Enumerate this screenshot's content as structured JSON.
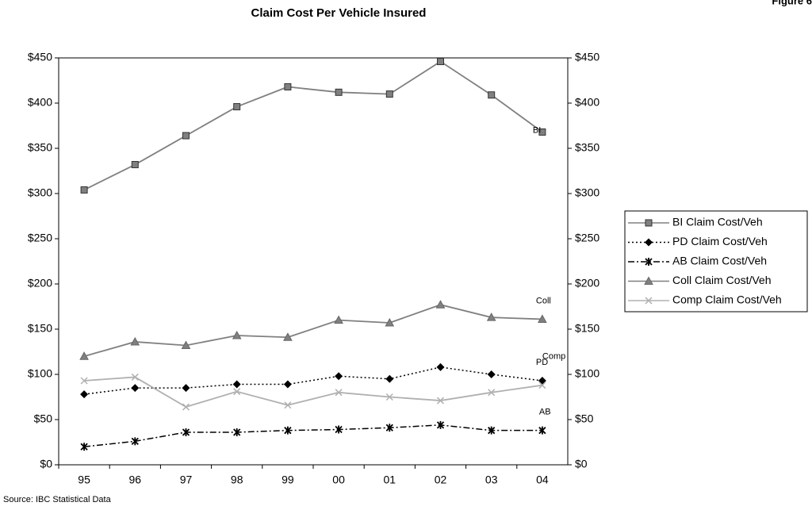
{
  "chart_data": {
    "type": "line",
    "title": "Claim Cost Per Vehicle Insured",
    "figure_label": "Figure 6",
    "source": "Source:  IBC Statistical Data",
    "categories": [
      "95",
      "96",
      "97",
      "98",
      "99",
      "00",
      "01",
      "02",
      "03",
      "04"
    ],
    "ylim": [
      0,
      450
    ],
    "yticks": [
      {
        "value": 0,
        "label": "$0"
      },
      {
        "value": 50,
        "label": "$50"
      },
      {
        "value": 100,
        "label": "$100"
      },
      {
        "value": 150,
        "label": "$150"
      },
      {
        "value": 200,
        "label": "$200"
      },
      {
        "value": 250,
        "label": "$250"
      },
      {
        "value": 300,
        "label": "$300"
      },
      {
        "value": 350,
        "label": "$350"
      },
      {
        "value": 400,
        "label": "$400"
      },
      {
        "value": 450,
        "label": "$450"
      }
    ],
    "y2lim": [
      0,
      450
    ],
    "y2ticks": [
      {
        "value": 0,
        "label": "$0"
      },
      {
        "value": 50,
        "label": "$50"
      },
      {
        "value": 100,
        "label": "$100"
      },
      {
        "value": 150,
        "label": "$150"
      },
      {
        "value": 200,
        "label": "$200"
      },
      {
        "value": 250,
        "label": "$250"
      },
      {
        "value": 300,
        "label": "$300"
      },
      {
        "value": 350,
        "label": "$350"
      },
      {
        "value": 400,
        "label": "$400"
      },
      {
        "value": 450,
        "label": "$450"
      }
    ],
    "grid": false,
    "legend": "right",
    "series": [
      {
        "name": "BI Claim Cost/Veh",
        "label": "BI",
        "color": "#808080",
        "marker": "square",
        "dash": "solid",
        "values": [
          304,
          332,
          364,
          396,
          418,
          412,
          410,
          446,
          409,
          368
        ]
      },
      {
        "name": "PD Claim Cost/Veh",
        "label": "PD",
        "color": "#000000",
        "marker": "diamond",
        "dash": "dotted",
        "values": [
          78,
          85,
          85,
          89,
          89,
          98,
          95,
          108,
          100,
          93
        ]
      },
      {
        "name": "AB Claim Cost/Veh",
        "label": "AB",
        "color": "#000000",
        "marker": "asterisk",
        "dash": "dashdot",
        "values": [
          20,
          26,
          36,
          36,
          38,
          39,
          41,
          44,
          38,
          38
        ]
      },
      {
        "name": "Coll Claim Cost/Veh",
        "label": "Coll",
        "color": "#808080",
        "marker": "triangle",
        "dash": "solid",
        "values": [
          120,
          136,
          132,
          143,
          141,
          160,
          157,
          177,
          163,
          161
        ]
      },
      {
        "name": "Comp Claim Cost/Veh",
        "label": "Comp",
        "color": "#b0b0b0",
        "marker": "x",
        "dash": "solid",
        "values": [
          93,
          97,
          64,
          81,
          66,
          80,
          75,
          71,
          80,
          88
        ]
      }
    ]
  }
}
